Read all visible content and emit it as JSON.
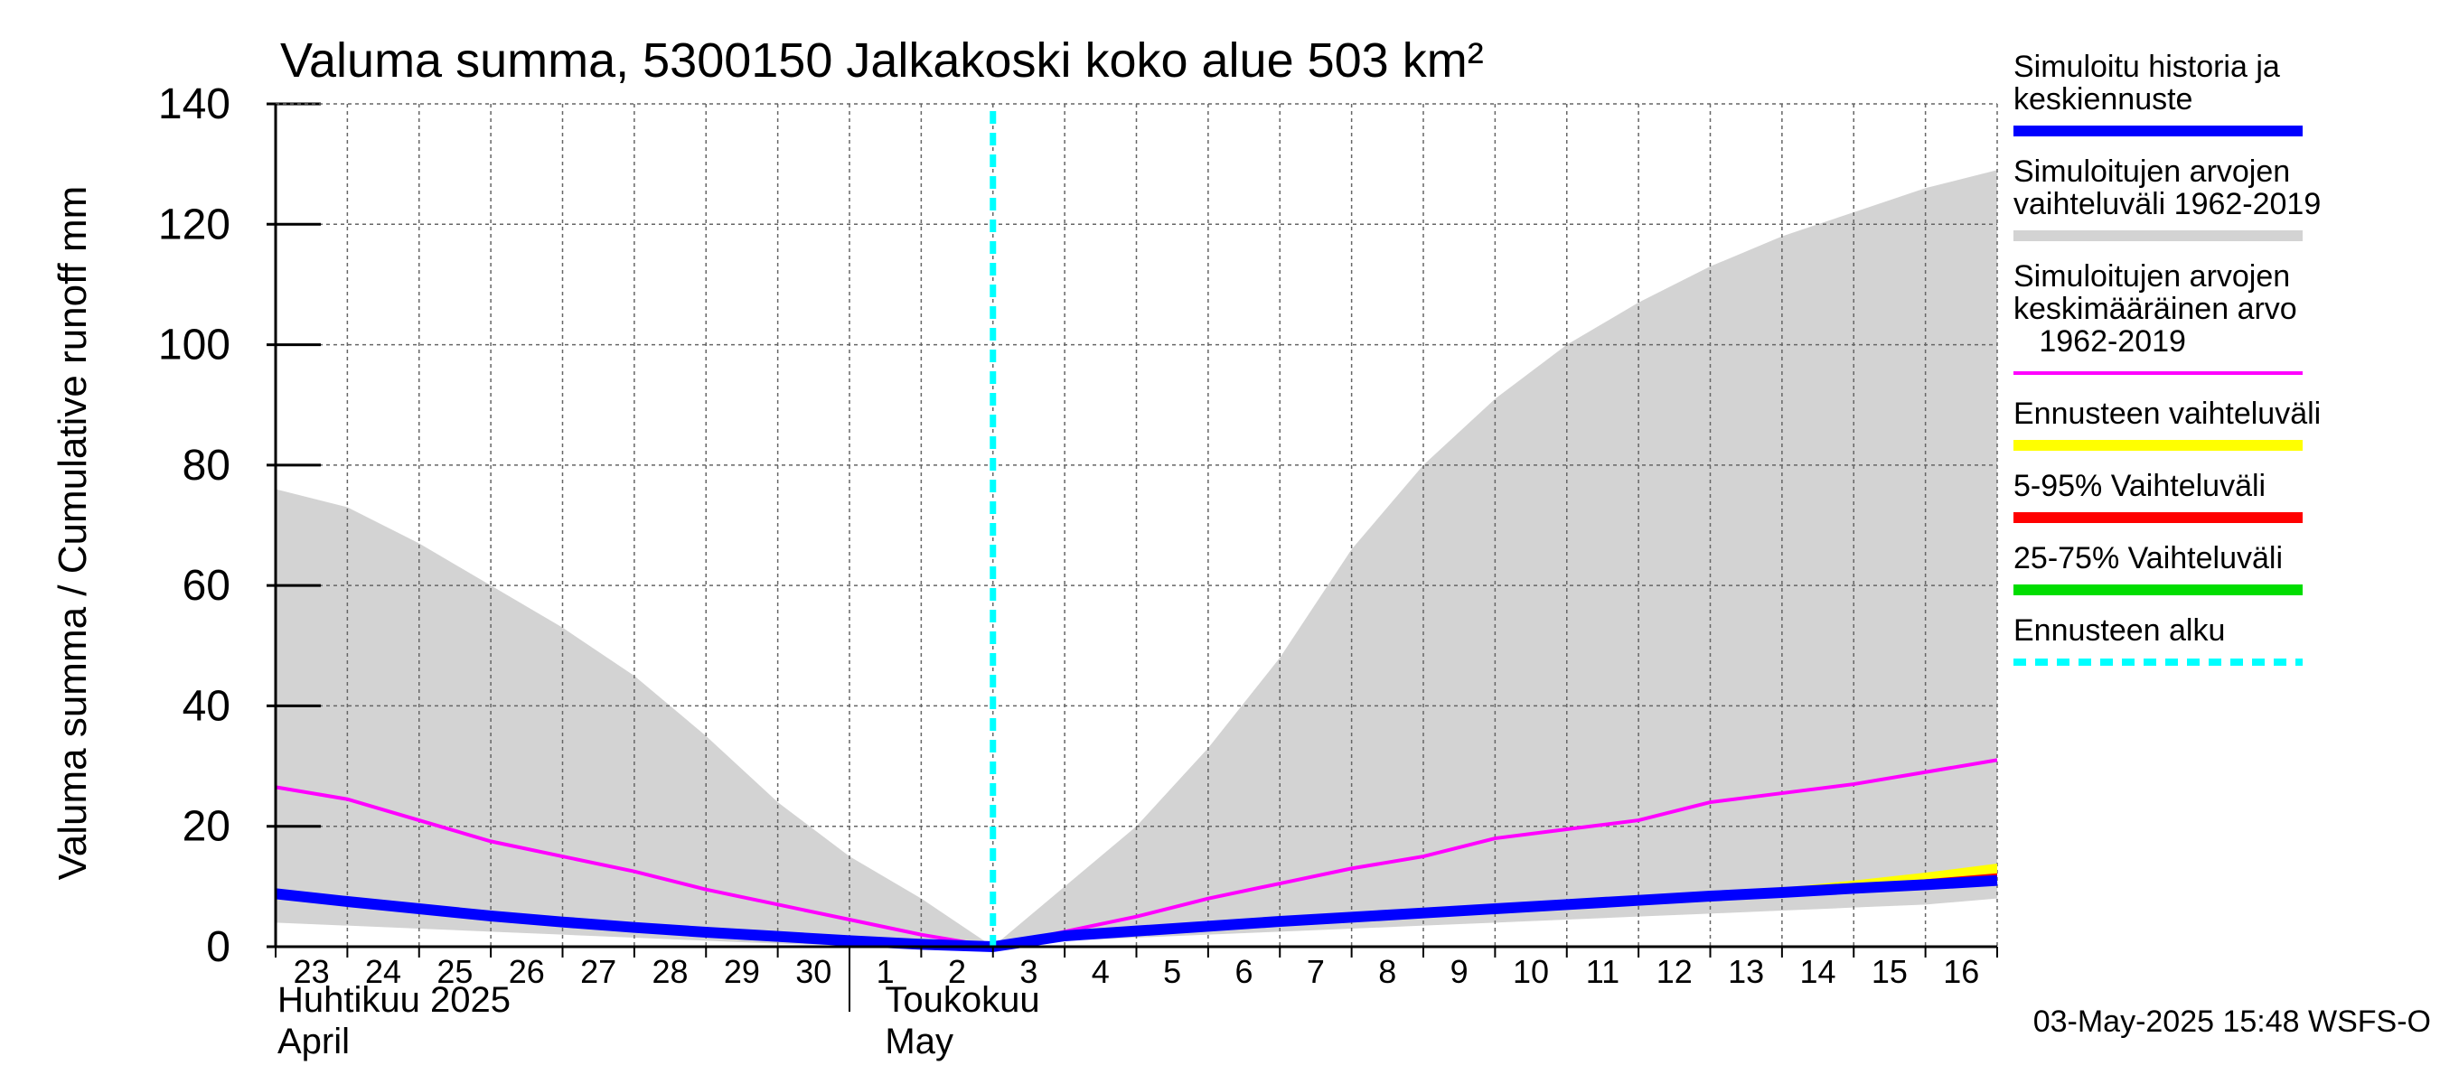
{
  "chart_data": {
    "type": "area",
    "title": "Valuma summa, 5300150 Jalkakoski koko alue 503 km²",
    "ylabel": "Valuma summa / Cumulative runoff    mm",
    "ylim": [
      0,
      140
    ],
    "yticks": [
      "0",
      "20",
      "40",
      "60",
      "80",
      "100",
      "120",
      "140"
    ],
    "x_start_label": "23",
    "x_tick_labels": [
      "23",
      "24",
      "25",
      "26",
      "27",
      "28",
      "29",
      "30",
      "1",
      "2",
      "3",
      "4",
      "5",
      "6",
      "7",
      "8",
      "9",
      "10",
      "11",
      "12",
      "13",
      "14",
      "15",
      "16"
    ],
    "month_labels": {
      "april_fi": "Huhtikuu  2025",
      "april_en": "April",
      "may_fi": "Toukokuu",
      "may_en": "May"
    },
    "x_index_note": "x values are day index from 23-Apr (0) to 17-May (24)",
    "forecast_start_x": 10,
    "series": [
      {
        "name": "Simuloitujen arvojen vaihteluväli 1962-2019",
        "color": "#d3d3d3",
        "x": [
          0,
          1,
          2,
          3,
          4,
          5,
          6,
          7,
          8,
          9,
          10,
          11,
          12,
          13,
          14,
          15,
          16,
          17,
          18,
          19,
          20,
          21,
          22,
          23,
          24
        ],
        "upper": [
          76,
          73,
          67,
          60,
          53,
          45,
          35,
          24,
          15,
          8,
          0,
          10,
          20,
          33,
          48,
          66,
          80,
          91,
          100,
          107,
          113,
          118,
          122,
          126,
          129
        ],
        "lower": [
          4,
          3.5,
          3,
          2.5,
          2,
          1.5,
          1,
          0.5,
          0.2,
          0.1,
          0,
          1,
          1.5,
          2,
          2.5,
          3,
          3.5,
          4,
          4.5,
          5,
          5.5,
          6,
          6.5,
          7,
          8
        ]
      },
      {
        "name": "Simuloitujen arvojen keskimääräinen arvo 1962-2019",
        "color": "#ff00ff",
        "x": [
          0,
          1,
          2,
          3,
          4,
          5,
          6,
          7,
          8,
          9,
          10,
          11,
          12,
          13,
          14,
          15,
          16,
          17,
          18,
          19,
          20,
          21,
          22,
          23,
          24
        ],
        "values": [
          26.5,
          24.5,
          21,
          17.5,
          15,
          12.5,
          9.5,
          7,
          4.5,
          2,
          0,
          2.5,
          5,
          8,
          10.5,
          13,
          15,
          18,
          19.5,
          21,
          24,
          25.5,
          27,
          29,
          31
        ]
      },
      {
        "name": "Ennusteen vaihteluväli",
        "color": "#ffff00",
        "x": [
          20,
          21,
          22,
          23,
          24
        ],
        "upper": [
          8.8,
          9.8,
          11,
          12.3,
          13.8
        ],
        "lower": [
          8,
          8.6,
          9.2,
          9.8,
          10.3
        ]
      },
      {
        "name": "5-95% Vaihteluväli",
        "color": "#ff0000",
        "x": [
          20,
          21,
          22,
          23,
          24
        ],
        "upper": [
          8.6,
          9.4,
          10.3,
          11.2,
          12.2
        ],
        "lower": [
          8.1,
          8.7,
          9.3,
          9.9,
          10.4
        ]
      },
      {
        "name": "25-75% Vaihteluväli",
        "color": "#00dd00",
        "x": [
          20,
          21,
          22,
          23,
          24
        ],
        "upper": [
          8.5,
          9.2,
          9.9,
          10.7,
          11.4
        ],
        "lower": [
          8.2,
          8.8,
          9.4,
          10,
          10.6
        ]
      },
      {
        "name": "Simuloitu historia ja keskiennuste",
        "color": "#0000ff",
        "x": [
          0,
          1,
          2,
          3,
          4,
          5,
          6,
          7,
          8,
          9,
          10,
          11,
          12,
          13,
          14,
          15,
          16,
          17,
          18,
          19,
          20,
          21,
          22,
          23,
          24
        ],
        "values": [
          8.8,
          7.5,
          6.3,
          5.1,
          4.1,
          3.2,
          2.4,
          1.7,
          1.0,
          0.4,
          0,
          1.8,
          2.6,
          3.4,
          4.2,
          4.9,
          5.6,
          6.3,
          7.0,
          7.7,
          8.4,
          9.0,
          9.7,
          10.3,
          11.0
        ]
      }
    ],
    "legend": [
      {
        "lines": [
          "Simuloitu historia ja",
          "keskiennuste"
        ],
        "color": "#0000ff",
        "style": "solid"
      },
      {
        "lines": [
          "Simuloitujen arvojen",
          "vaihteluväli 1962-2019"
        ],
        "color": "#d3d3d3",
        "style": "solid"
      },
      {
        "lines": [
          "Simuloitujen arvojen",
          "keskimääräinen arvo",
          "   1962-2019"
        ],
        "color": "#ff00ff",
        "style": "thin"
      },
      {
        "lines": [
          "Ennusteen vaihteluväli"
        ],
        "color": "#ffff00",
        "style": "solid"
      },
      {
        "lines": [
          "5-95% Vaihteluväli"
        ],
        "color": "#ff0000",
        "style": "solid"
      },
      {
        "lines": [
          "25-75% Vaihteluväli"
        ],
        "color": "#00dd00",
        "style": "solid"
      },
      {
        "lines": [
          "Ennusteen alku"
        ],
        "color": "#00ffff",
        "style": "dashed"
      }
    ],
    "footer": "03-May-2025 15:48 WSFS-O"
  }
}
